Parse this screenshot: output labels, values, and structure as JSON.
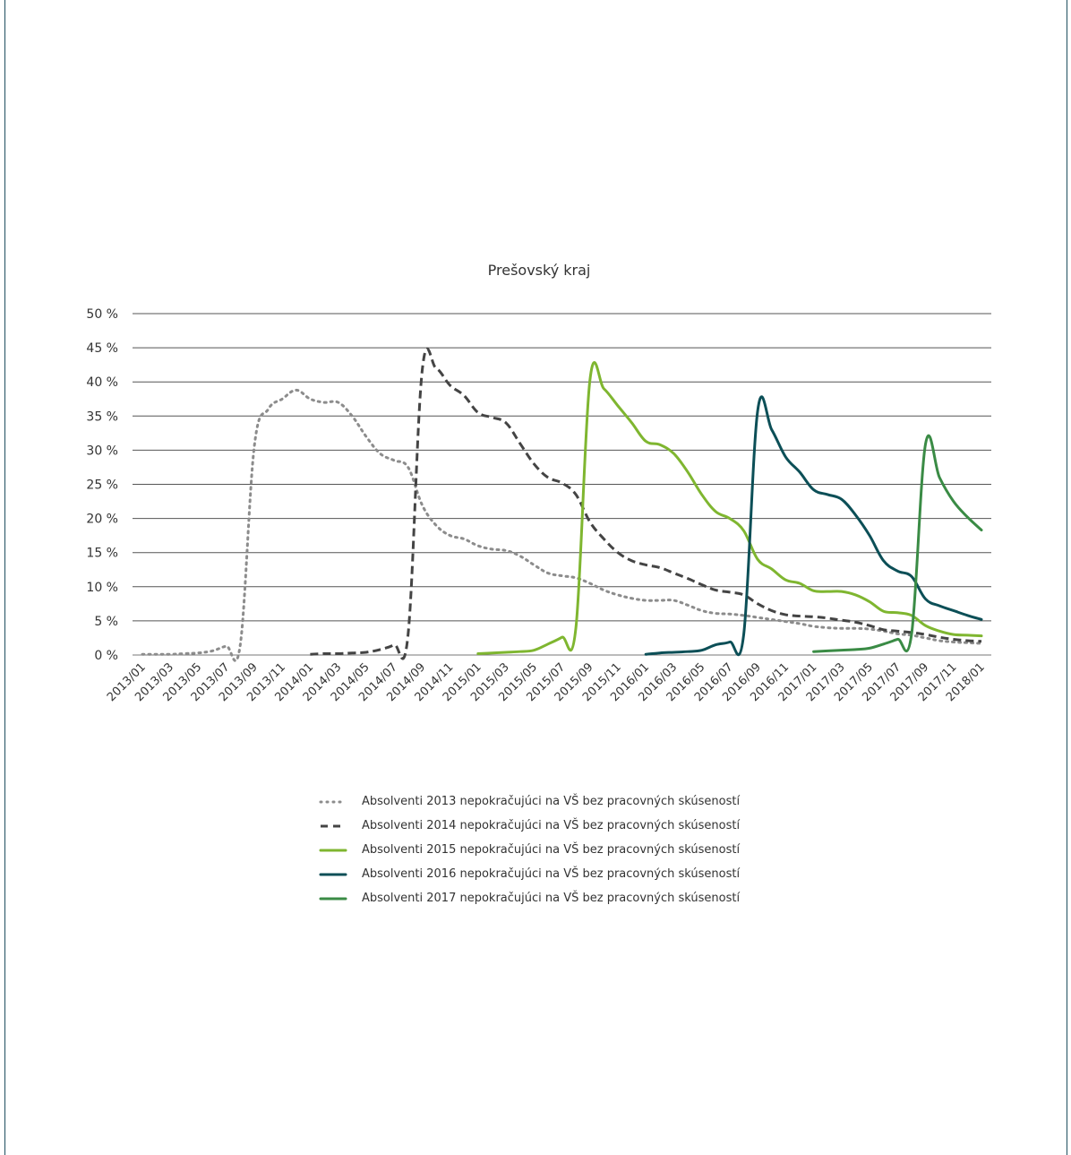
{
  "chart_data": {
    "type": "line",
    "title": "Prešovský kraj",
    "xlabel": "",
    "ylabel": "",
    "ylim": [
      0,
      50
    ],
    "yticks": [
      0,
      5,
      10,
      15,
      20,
      25,
      30,
      35,
      40,
      45,
      50
    ],
    "y_tick_labels": [
      "0 %",
      "5 %",
      "10 %",
      "15 %",
      "20 %",
      "25 %",
      "30 %",
      "35 %",
      "40 %",
      "45 %",
      "50 %"
    ],
    "grid": true,
    "legend_position": "bottom",
    "x_tick_labels": [
      "2013/01",
      "2013/03",
      "2013/05",
      "2013/07",
      "2013/09",
      "2013/11",
      "2014/01",
      "2014/03",
      "2014/05",
      "2014/07",
      "2014/09",
      "2014/11",
      "2015/01",
      "2015/03",
      "2015/05",
      "2015/07",
      "2015/09",
      "2015/11",
      "2016/01",
      "2016/03",
      "2016/05",
      "2016/07",
      "2016/09",
      "2016/11",
      "2017/01",
      "2017/03",
      "2017/05",
      "2017/07",
      "2017/09",
      "2017/11",
      "2018/01"
    ],
    "series": [
      {
        "name": "Absolventi 2013 nepokračujúci na VŠ bez pracovných skúseností",
        "color": "#8c8c8c",
        "style": "dotted",
        "points": [
          [
            "2013/01",
            0.1
          ],
          [
            "2013/02",
            0.1
          ],
          [
            "2013/03",
            0.1
          ],
          [
            "2013/04",
            0.2
          ],
          [
            "2013/05",
            0.3
          ],
          [
            "2013/06",
            0.6
          ],
          [
            "2013/07",
            1.3
          ],
          [
            "2013/08",
            1.5
          ],
          [
            "2013/09",
            30.5
          ],
          [
            "2013/10",
            36.0
          ],
          [
            "2013/11",
            37.5
          ],
          [
            "2013/12",
            38.8
          ],
          [
            "2014/01",
            37.5
          ],
          [
            "2014/02",
            37.0
          ],
          [
            "2014/03",
            37.0
          ],
          [
            "2014/04",
            35.0
          ],
          [
            "2014/05",
            32.0
          ],
          [
            "2014/06",
            29.5
          ],
          [
            "2014/07",
            28.5
          ],
          [
            "2014/08",
            27.5
          ],
          [
            "2014/09",
            22.0
          ],
          [
            "2014/10",
            19.0
          ],
          [
            "2014/11",
            17.5
          ],
          [
            "2014/12",
            17.0
          ],
          [
            "2015/01",
            16.0
          ],
          [
            "2015/02",
            15.5
          ],
          [
            "2015/03",
            15.3
          ],
          [
            "2015/04",
            14.5
          ],
          [
            "2015/05",
            13.2
          ],
          [
            "2015/06",
            12.0
          ],
          [
            "2015/07",
            11.6
          ],
          [
            "2015/08",
            11.3
          ],
          [
            "2015/09",
            10.5
          ],
          [
            "2015/10",
            9.5
          ],
          [
            "2015/11",
            8.8
          ],
          [
            "2015/12",
            8.3
          ],
          [
            "2016/01",
            8.0
          ],
          [
            "2016/02",
            8.0
          ],
          [
            "2016/03",
            8.0
          ],
          [
            "2016/04",
            7.3
          ],
          [
            "2016/05",
            6.5
          ],
          [
            "2016/06",
            6.1
          ],
          [
            "2016/07",
            6.0
          ],
          [
            "2016/08",
            5.8
          ],
          [
            "2016/09",
            5.5
          ],
          [
            "2016/10",
            5.2
          ],
          [
            "2016/11",
            4.9
          ],
          [
            "2016/12",
            4.6
          ],
          [
            "2017/01",
            4.2
          ],
          [
            "2017/02",
            4.0
          ],
          [
            "2017/03",
            3.9
          ],
          [
            "2017/04",
            3.9
          ],
          [
            "2017/05",
            3.8
          ],
          [
            "2017/06",
            3.5
          ],
          [
            "2017/07",
            3.1
          ],
          [
            "2017/08",
            2.9
          ],
          [
            "2017/09",
            2.5
          ],
          [
            "2017/10",
            2.1
          ],
          [
            "2017/11",
            1.9
          ],
          [
            "2017/12",
            1.8
          ],
          [
            "2018/01",
            1.7
          ]
        ]
      },
      {
        "name": "Absolventi 2014 nepokračujúci na VŠ bez pracovných skúseností",
        "color": "#444444",
        "style": "dashed",
        "points": [
          [
            "2013/07",
            0.0
          ],
          [
            "2013/08",
            0.0
          ],
          [
            "2013/09",
            0.0
          ],
          [
            "2013/10",
            0.0
          ],
          [
            "2013/11",
            0.0
          ],
          [
            "2013/12",
            0.0
          ],
          [
            "2014/01",
            0.1
          ],
          [
            "2014/02",
            0.2
          ],
          [
            "2014/03",
            0.2
          ],
          [
            "2014/04",
            0.3
          ],
          [
            "2014/05",
            0.4
          ],
          [
            "2014/06",
            0.8
          ],
          [
            "2014/07",
            1.5
          ],
          [
            "2014/08",
            3.0
          ],
          [
            "2014/09",
            41.5
          ],
          [
            "2014/10",
            42.0
          ],
          [
            "2014/11",
            39.5
          ],
          [
            "2014/12",
            38.0
          ],
          [
            "2015/01",
            35.5
          ],
          [
            "2015/02",
            34.8
          ],
          [
            "2015/03",
            34.0
          ],
          [
            "2015/04",
            31.0
          ],
          [
            "2015/05",
            28.0
          ],
          [
            "2015/06",
            26.0
          ],
          [
            "2015/07",
            25.2
          ],
          [
            "2015/08",
            23.5
          ],
          [
            "2015/09",
            19.5
          ],
          [
            "2015/10",
            17.0
          ],
          [
            "2015/11",
            15.0
          ],
          [
            "2015/12",
            13.8
          ],
          [
            "2016/01",
            13.2
          ],
          [
            "2016/02",
            12.8
          ],
          [
            "2016/03",
            12.0
          ],
          [
            "2016/04",
            11.2
          ],
          [
            "2016/05",
            10.3
          ],
          [
            "2016/06",
            9.5
          ],
          [
            "2016/07",
            9.2
          ],
          [
            "2016/08",
            8.8
          ],
          [
            "2016/09",
            7.5
          ],
          [
            "2016/10",
            6.5
          ],
          [
            "2016/11",
            5.9
          ],
          [
            "2016/12",
            5.7
          ],
          [
            "2017/01",
            5.6
          ],
          [
            "2017/02",
            5.4
          ],
          [
            "2017/03",
            5.1
          ],
          [
            "2017/04",
            4.8
          ],
          [
            "2017/05",
            4.3
          ],
          [
            "2017/06",
            3.7
          ],
          [
            "2017/07",
            3.5
          ],
          [
            "2017/08",
            3.3
          ],
          [
            "2017/09",
            3.0
          ],
          [
            "2017/10",
            2.6
          ],
          [
            "2017/11",
            2.3
          ],
          [
            "2017/12",
            2.1
          ],
          [
            "2018/01",
            2.0
          ]
        ]
      },
      {
        "name": "Absolventi 2015 nepokračujúci na VŠ bez pracovných skúseností",
        "color": "#7fb630",
        "style": "solid",
        "points": [
          [
            "2014/07",
            0.0
          ],
          [
            "2014/08",
            0.0
          ],
          [
            "2014/09",
            0.0
          ],
          [
            "2014/10",
            0.0
          ],
          [
            "2014/11",
            0.0
          ],
          [
            "2014/12",
            0.0
          ],
          [
            "2015/01",
            0.2
          ],
          [
            "2015/02",
            0.3
          ],
          [
            "2015/03",
            0.4
          ],
          [
            "2015/04",
            0.5
          ],
          [
            "2015/05",
            0.7
          ],
          [
            "2015/06",
            1.6
          ],
          [
            "2015/07",
            2.6
          ],
          [
            "2015/08",
            4.0
          ],
          [
            "2015/09",
            40.2
          ],
          [
            "2015/10",
            39.0
          ],
          [
            "2015/11",
            36.5
          ],
          [
            "2015/12",
            34.0
          ],
          [
            "2016/01",
            31.3
          ],
          [
            "2016/02",
            30.8
          ],
          [
            "2016/03",
            29.5
          ],
          [
            "2016/04",
            26.8
          ],
          [
            "2016/05",
            23.5
          ],
          [
            "2016/06",
            21.0
          ],
          [
            "2016/07",
            20.0
          ],
          [
            "2016/08",
            18.2
          ],
          [
            "2016/09",
            14.0
          ],
          [
            "2016/10",
            12.6
          ],
          [
            "2016/11",
            11.0
          ],
          [
            "2016/12",
            10.5
          ],
          [
            "2017/01",
            9.4
          ],
          [
            "2017/02",
            9.3
          ],
          [
            "2017/03",
            9.3
          ],
          [
            "2017/04",
            8.8
          ],
          [
            "2017/05",
            7.8
          ],
          [
            "2017/06",
            6.4
          ],
          [
            "2017/07",
            6.2
          ],
          [
            "2017/08",
            5.8
          ],
          [
            "2017/09",
            4.3
          ],
          [
            "2017/10",
            3.5
          ],
          [
            "2017/11",
            3.0
          ],
          [
            "2017/12",
            2.9
          ],
          [
            "2018/01",
            2.8
          ]
        ]
      },
      {
        "name": "Absolventi 2016 nepokračujúci na VŠ bez pracovných skúseností",
        "color": "#0c4f57",
        "style": "solid",
        "points": [
          [
            "2015/07",
            0.0
          ],
          [
            "2015/08",
            0.0
          ],
          [
            "2015/09",
            0.0
          ],
          [
            "2015/10",
            0.0
          ],
          [
            "2015/11",
            0.0
          ],
          [
            "2015/12",
            0.0
          ],
          [
            "2016/01",
            0.1
          ],
          [
            "2016/02",
            0.3
          ],
          [
            "2016/03",
            0.4
          ],
          [
            "2016/04",
            0.5
          ],
          [
            "2016/05",
            0.7
          ],
          [
            "2016/06",
            1.5
          ],
          [
            "2016/07",
            1.9
          ],
          [
            "2016/08",
            3.0
          ],
          [
            "2016/09",
            35.8
          ],
          [
            "2016/10",
            33.0
          ],
          [
            "2016/11",
            29.0
          ],
          [
            "2016/12",
            26.8
          ],
          [
            "2017/01",
            24.2
          ],
          [
            "2017/02",
            23.5
          ],
          [
            "2017/03",
            22.8
          ],
          [
            "2017/04",
            20.5
          ],
          [
            "2017/05",
            17.5
          ],
          [
            "2017/06",
            13.8
          ],
          [
            "2017/07",
            12.3
          ],
          [
            "2017/08",
            11.5
          ],
          [
            "2017/09",
            8.2
          ],
          [
            "2017/10",
            7.2
          ],
          [
            "2017/11",
            6.5
          ],
          [
            "2017/12",
            5.8
          ],
          [
            "2018/01",
            5.2
          ]
        ]
      },
      {
        "name": "Absolventi 2017 nepokračujúci na VŠ bez pracovných skúseností",
        "color": "#3a8b45",
        "style": "solid",
        "points": [
          [
            "2016/07",
            0.0
          ],
          [
            "2016/08",
            0.0
          ],
          [
            "2016/09",
            0.0
          ],
          [
            "2016/10",
            0.0
          ],
          [
            "2016/11",
            0.0
          ],
          [
            "2016/12",
            0.0
          ],
          [
            "2017/01",
            0.5
          ],
          [
            "2017/02",
            0.6
          ],
          [
            "2017/03",
            0.7
          ],
          [
            "2017/04",
            0.8
          ],
          [
            "2017/05",
            1.0
          ],
          [
            "2017/06",
            1.6
          ],
          [
            "2017/07",
            2.3
          ],
          [
            "2017/08",
            3.0
          ],
          [
            "2017/09",
            30.9
          ],
          [
            "2017/10",
            26.0
          ],
          [
            "2017/11",
            22.5
          ],
          [
            "2017/12",
            20.2
          ],
          [
            "2018/01",
            18.3
          ]
        ]
      }
    ]
  }
}
